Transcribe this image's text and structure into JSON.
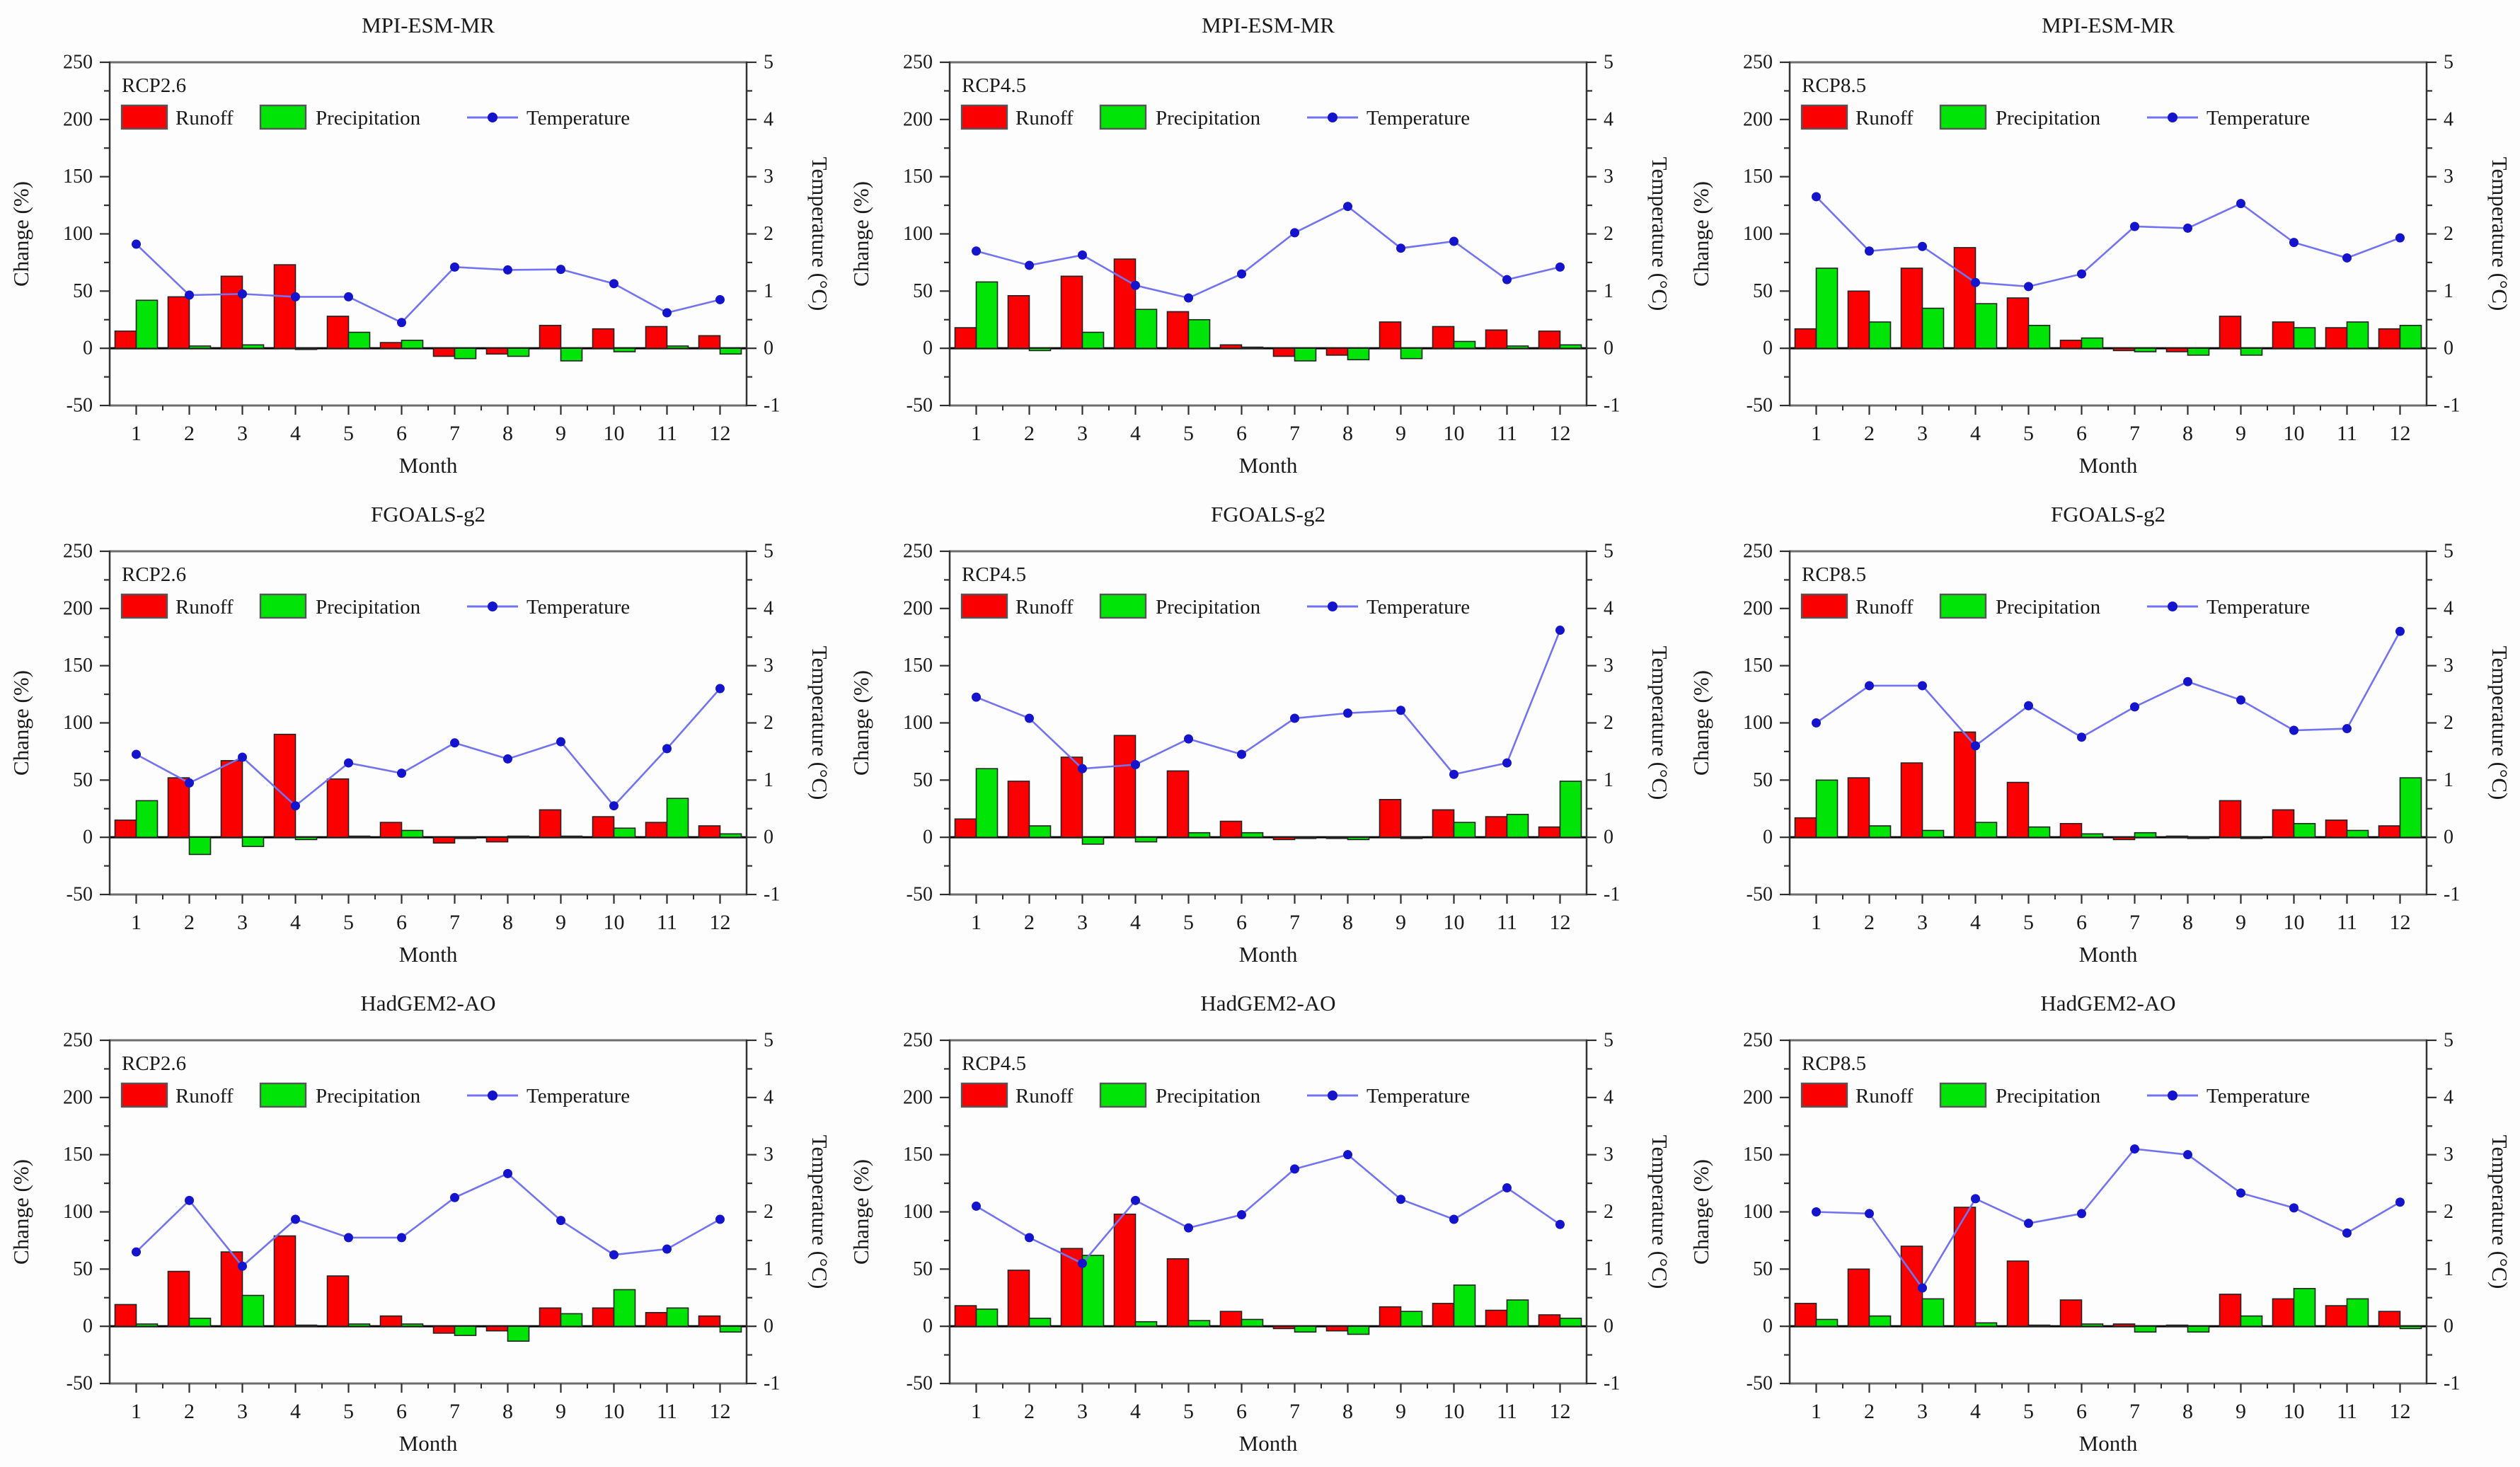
{
  "colors": {
    "runoff": "#fb0000",
    "precipitation": "#00e408",
    "temperature_line": "#7373f2",
    "temperature_marker": "#1414cc",
    "bar_outline": "#222222",
    "swatch_outline": "#555555",
    "zero_line": "#000000",
    "frame_horizontal": "#6e6e6e",
    "frame_vertical": "#333333",
    "tick": "#2f2f2f",
    "text": "#1a1a1a"
  },
  "axes": {
    "x_label": "Month",
    "y_left_label": "Change (%)",
    "y_right_label": "Temperature (°C)",
    "y_left_range": [
      -50,
      250
    ],
    "y_left_major_step": 50,
    "y_left_minor_step": 25,
    "y_right_range": [
      -1,
      5
    ],
    "y_right_major_step": 1,
    "y_right_minor_step": 0.5,
    "grid": "off",
    "legend_position": "inside-top-left"
  },
  "chart_data": [
    {
      "type": "bar",
      "title": "MPI-ESM-MR",
      "scenario": "RCP2.6",
      "xlabel": "Month",
      "ylabel": "Change (%)",
      "y2label": "Temperature (°C)",
      "ylim": [
        -50,
        250
      ],
      "y2lim": [
        -1,
        5
      ],
      "categories": [
        1,
        2,
        3,
        4,
        5,
        6,
        7,
        8,
        9,
        10,
        11,
        12
      ],
      "series": [
        {
          "name": "Runoff",
          "kind": "bar",
          "axis": "left",
          "color_key": "runoff",
          "values": [
            15,
            45,
            63,
            73,
            28,
            5,
            -7,
            -5,
            20,
            17,
            19,
            11
          ]
        },
        {
          "name": "Precipitation",
          "kind": "bar",
          "axis": "left",
          "color_key": "precipitation",
          "values": [
            42,
            2,
            3,
            -1,
            14,
            7,
            -9,
            -7,
            -11,
            -3,
            2,
            -5
          ]
        },
        {
          "name": "Temperature",
          "kind": "line",
          "axis": "right",
          "color_key": "temperature_line",
          "values": [
            1.82,
            0.93,
            0.95,
            0.9,
            0.9,
            0.45,
            1.42,
            1.37,
            1.38,
            1.13,
            0.62,
            0.85
          ]
        }
      ]
    },
    {
      "type": "bar",
      "title": "MPI-ESM-MR",
      "scenario": "RCP4.5",
      "xlabel": "Month",
      "ylabel": "Change (%)",
      "y2label": "Temperature (°C)",
      "ylim": [
        -50,
        250
      ],
      "y2lim": [
        -1,
        5
      ],
      "categories": [
        1,
        2,
        3,
        4,
        5,
        6,
        7,
        8,
        9,
        10,
        11,
        12
      ],
      "series": [
        {
          "name": "Runoff",
          "kind": "bar",
          "axis": "left",
          "color_key": "runoff",
          "values": [
            18,
            46,
            63,
            78,
            32,
            3,
            -7,
            -6,
            23,
            19,
            16,
            15
          ]
        },
        {
          "name": "Precipitation",
          "kind": "bar",
          "axis": "left",
          "color_key": "precipitation",
          "values": [
            58,
            -2,
            14,
            34,
            25,
            1,
            -11,
            -10,
            -9,
            6,
            2,
            3
          ]
        },
        {
          "name": "Temperature",
          "kind": "line",
          "axis": "right",
          "color_key": "temperature_line",
          "values": [
            1.7,
            1.45,
            1.63,
            1.1,
            0.88,
            1.3,
            2.02,
            2.48,
            1.75,
            1.87,
            1.2,
            1.42
          ]
        }
      ]
    },
    {
      "type": "bar",
      "title": "MPI-ESM-MR",
      "scenario": "RCP8.5",
      "xlabel": "Month",
      "ylabel": "Change (%)",
      "y2label": "Temperature (°C)",
      "ylim": [
        -50,
        250
      ],
      "y2lim": [
        -1,
        5
      ],
      "categories": [
        1,
        2,
        3,
        4,
        5,
        6,
        7,
        8,
        9,
        10,
        11,
        12
      ],
      "series": [
        {
          "name": "Runoff",
          "kind": "bar",
          "axis": "left",
          "color_key": "runoff",
          "values": [
            17,
            50,
            70,
            88,
            44,
            7,
            -2,
            -3,
            28,
            23,
            18,
            17
          ]
        },
        {
          "name": "Precipitation",
          "kind": "bar",
          "axis": "left",
          "color_key": "precipitation",
          "values": [
            70,
            23,
            35,
            39,
            20,
            9,
            -3,
            -6,
            -6,
            18,
            23,
            20
          ]
        },
        {
          "name": "Temperature",
          "kind": "line",
          "axis": "right",
          "color_key": "temperature_line",
          "values": [
            2.65,
            1.7,
            1.78,
            1.15,
            1.08,
            1.3,
            2.13,
            2.1,
            2.53,
            1.85,
            1.58,
            1.93
          ]
        }
      ]
    },
    {
      "type": "bar",
      "title": "FGOALS-g2",
      "scenario": "RCP2.6",
      "xlabel": "Month",
      "ylabel": "Change (%)",
      "y2label": "Temperature (°C)",
      "ylim": [
        -50,
        250
      ],
      "y2lim": [
        -1,
        5
      ],
      "categories": [
        1,
        2,
        3,
        4,
        5,
        6,
        7,
        8,
        9,
        10,
        11,
        12
      ],
      "series": [
        {
          "name": "Runoff",
          "kind": "bar",
          "axis": "left",
          "color_key": "runoff",
          "values": [
            15,
            52,
            67,
            90,
            51,
            13,
            -5,
            -4,
            24,
            18,
            13,
            10
          ]
        },
        {
          "name": "Precipitation",
          "kind": "bar",
          "axis": "left",
          "color_key": "precipitation",
          "values": [
            32,
            -15,
            -8,
            -2,
            1,
            6,
            -1,
            1,
            1,
            8,
            34,
            3
          ]
        },
        {
          "name": "Temperature",
          "kind": "line",
          "axis": "right",
          "color_key": "temperature_line",
          "values": [
            1.45,
            0.95,
            1.4,
            0.55,
            1.3,
            1.12,
            1.65,
            1.37,
            1.67,
            0.55,
            1.55,
            2.6
          ]
        }
      ]
    },
    {
      "type": "bar",
      "title": "FGOALS-g2",
      "scenario": "RCP4.5",
      "xlabel": "Month",
      "ylabel": "Change (%)",
      "y2label": "Temperature (°C)",
      "ylim": [
        -50,
        250
      ],
      "y2lim": [
        -1,
        5
      ],
      "categories": [
        1,
        2,
        3,
        4,
        5,
        6,
        7,
        8,
        9,
        10,
        11,
        12
      ],
      "series": [
        {
          "name": "Runoff",
          "kind": "bar",
          "axis": "left",
          "color_key": "runoff",
          "values": [
            16,
            49,
            70,
            89,
            58,
            14,
            -2,
            -1,
            33,
            24,
            18,
            9
          ]
        },
        {
          "name": "Precipitation",
          "kind": "bar",
          "axis": "left",
          "color_key": "precipitation",
          "values": [
            60,
            10,
            -6,
            -4,
            4,
            4,
            -1,
            -2,
            -1,
            13,
            20,
            49
          ]
        },
        {
          "name": "Temperature",
          "kind": "line",
          "axis": "right",
          "color_key": "temperature_line",
          "values": [
            2.45,
            2.08,
            1.2,
            1.27,
            1.72,
            1.45,
            2.08,
            2.17,
            2.22,
            1.1,
            1.3,
            3.62
          ]
        }
      ]
    },
    {
      "type": "bar",
      "title": "FGOALS-g2",
      "scenario": "RCP8.5",
      "xlabel": "Month",
      "ylabel": "Change (%)",
      "y2label": "Temperature (°C)",
      "ylim": [
        -50,
        250
      ],
      "y2lim": [
        -1,
        5
      ],
      "categories": [
        1,
        2,
        3,
        4,
        5,
        6,
        7,
        8,
        9,
        10,
        11,
        12
      ],
      "series": [
        {
          "name": "Runoff",
          "kind": "bar",
          "axis": "left",
          "color_key": "runoff",
          "values": [
            17,
            52,
            65,
            92,
            48,
            12,
            -2,
            1,
            32,
            24,
            15,
            10
          ]
        },
        {
          "name": "Precipitation",
          "kind": "bar",
          "axis": "left",
          "color_key": "precipitation",
          "values": [
            50,
            10,
            6,
            13,
            9,
            3,
            4,
            -1,
            -1,
            12,
            6,
            52
          ]
        },
        {
          "name": "Temperature",
          "kind": "line",
          "axis": "right",
          "color_key": "temperature_line",
          "values": [
            2.0,
            2.65,
            2.65,
            1.6,
            2.3,
            1.75,
            2.28,
            2.72,
            2.4,
            1.87,
            1.9,
            3.6
          ]
        }
      ]
    },
    {
      "type": "bar",
      "title": "HadGEM2-AO",
      "scenario": "RCP2.6",
      "xlabel": "Month",
      "ylabel": "Change (%)",
      "y2label": "Temperature (°C)",
      "ylim": [
        -50,
        250
      ],
      "y2lim": [
        -1,
        5
      ],
      "categories": [
        1,
        2,
        3,
        4,
        5,
        6,
        7,
        8,
        9,
        10,
        11,
        12
      ],
      "series": [
        {
          "name": "Runoff",
          "kind": "bar",
          "axis": "left",
          "color_key": "runoff",
          "values": [
            19,
            48,
            65,
            79,
            44,
            9,
            -6,
            -4,
            16,
            16,
            12,
            9
          ]
        },
        {
          "name": "Precipitation",
          "kind": "bar",
          "axis": "left",
          "color_key": "precipitation",
          "values": [
            2,
            7,
            27,
            1,
            2,
            2,
            -8,
            -13,
            11,
            32,
            16,
            -5
          ]
        },
        {
          "name": "Temperature",
          "kind": "line",
          "axis": "right",
          "color_key": "temperature_line",
          "values": [
            1.3,
            2.2,
            1.05,
            1.87,
            1.55,
            1.55,
            2.25,
            2.67,
            1.85,
            1.25,
            1.35,
            1.87
          ]
        }
      ]
    },
    {
      "type": "bar",
      "title": "HadGEM2-AO",
      "scenario": "RCP4.5",
      "xlabel": "Month",
      "ylabel": "Change (%)",
      "y2label": "Temperature (°C)",
      "ylim": [
        -50,
        250
      ],
      "y2lim": [
        -1,
        5
      ],
      "categories": [
        1,
        2,
        3,
        4,
        5,
        6,
        7,
        8,
        9,
        10,
        11,
        12
      ],
      "series": [
        {
          "name": "Runoff",
          "kind": "bar",
          "axis": "left",
          "color_key": "runoff",
          "values": [
            18,
            49,
            68,
            98,
            59,
            13,
            -2,
            -4,
            17,
            20,
            14,
            10
          ]
        },
        {
          "name": "Precipitation",
          "kind": "bar",
          "axis": "left",
          "color_key": "precipitation",
          "values": [
            15,
            7,
            62,
            4,
            5,
            6,
            -5,
            -7,
            13,
            36,
            23,
            7
          ]
        },
        {
          "name": "Temperature",
          "kind": "line",
          "axis": "right",
          "color_key": "temperature_line",
          "values": [
            2.1,
            1.55,
            1.1,
            2.2,
            1.72,
            1.95,
            2.75,
            3.0,
            2.22,
            1.87,
            2.42,
            1.78
          ]
        }
      ]
    },
    {
      "type": "bar",
      "title": "HadGEM2-AO",
      "scenario": "RCP8.5",
      "xlabel": "Month",
      "ylabel": "Change (%)",
      "y2label": "Temperature (°C)",
      "ylim": [
        -50,
        250
      ],
      "y2lim": [
        -1,
        5
      ],
      "categories": [
        1,
        2,
        3,
        4,
        5,
        6,
        7,
        8,
        9,
        10,
        11,
        12
      ],
      "series": [
        {
          "name": "Runoff",
          "kind": "bar",
          "axis": "left",
          "color_key": "runoff",
          "values": [
            20,
            50,
            70,
            104,
            57,
            23,
            2,
            1,
            28,
            24,
            18,
            13
          ]
        },
        {
          "name": "Precipitation",
          "kind": "bar",
          "axis": "left",
          "color_key": "precipitation",
          "values": [
            6,
            9,
            24,
            3,
            1,
            2,
            -5,
            -5,
            9,
            33,
            24,
            -2
          ]
        },
        {
          "name": "Temperature",
          "kind": "line",
          "axis": "right",
          "color_key": "temperature_line",
          "values": [
            2.0,
            1.97,
            0.67,
            2.23,
            1.8,
            1.97,
            3.1,
            3.0,
            2.33,
            2.07,
            1.63,
            2.17
          ]
        }
      ]
    }
  ]
}
